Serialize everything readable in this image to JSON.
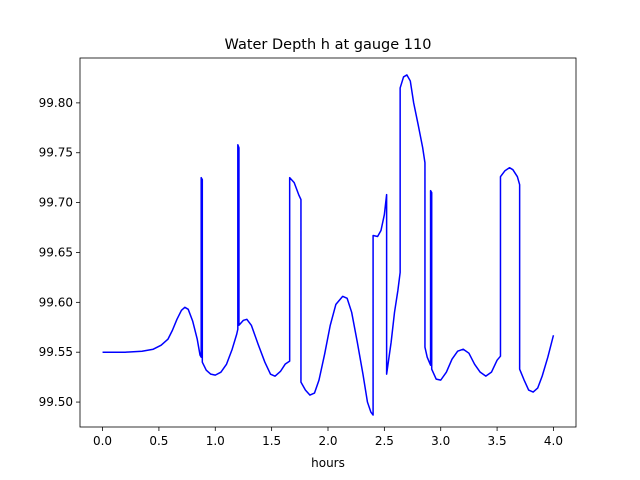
{
  "chart_data": {
    "type": "line",
    "title": "Water Depth h at gauge 110",
    "xlabel": "hours",
    "ylabel": "",
    "xlim": [
      -0.2,
      4.2
    ],
    "ylim": [
      99.475,
      99.845
    ],
    "xticks": [
      "0.0",
      "0.5",
      "1.0",
      "1.5",
      "2.0",
      "2.5",
      "3.0",
      "3.5",
      "4.0"
    ],
    "yticks": [
      "99.50",
      "99.55",
      "99.60",
      "99.65",
      "99.70",
      "99.75",
      "99.80"
    ],
    "grid": false,
    "series": [
      {
        "color": "#0000ff",
        "points": [
          [
            0.0,
            99.55
          ],
          [
            0.2,
            99.55
          ],
          [
            0.35,
            99.551
          ],
          [
            0.45,
            99.553
          ],
          [
            0.52,
            99.557
          ],
          [
            0.58,
            99.563
          ],
          [
            0.62,
            99.572
          ],
          [
            0.66,
            99.583
          ],
          [
            0.7,
            99.592
          ],
          [
            0.73,
            99.595
          ],
          [
            0.76,
            99.593
          ],
          [
            0.8,
            99.581
          ],
          [
            0.84,
            99.563
          ],
          [
            0.865,
            99.547
          ],
          [
            0.875,
            99.545
          ],
          [
            0.875,
            99.725
          ],
          [
            0.885,
            99.723
          ],
          [
            0.885,
            99.54
          ],
          [
            0.92,
            99.532
          ],
          [
            0.96,
            99.528
          ],
          [
            1.0,
            99.527
          ],
          [
            1.05,
            99.53
          ],
          [
            1.1,
            99.538
          ],
          [
            1.15,
            99.553
          ],
          [
            1.19,
            99.568
          ],
          [
            1.2,
            99.573
          ],
          [
            1.2,
            99.758
          ],
          [
            1.21,
            99.755
          ],
          [
            1.21,
            99.577
          ],
          [
            1.25,
            99.582
          ],
          [
            1.28,
            99.583
          ],
          [
            1.32,
            99.577
          ],
          [
            1.38,
            99.558
          ],
          [
            1.44,
            99.54
          ],
          [
            1.49,
            99.528
          ],
          [
            1.53,
            99.526
          ],
          [
            1.58,
            99.531
          ],
          [
            1.62,
            99.538
          ],
          [
            1.66,
            99.541
          ],
          [
            1.66,
            99.725
          ],
          [
            1.7,
            99.72
          ],
          [
            1.74,
            99.708
          ],
          [
            1.76,
            99.703
          ],
          [
            1.76,
            99.52
          ],
          [
            1.8,
            99.512
          ],
          [
            1.84,
            99.507
          ],
          [
            1.88,
            99.509
          ],
          [
            1.92,
            99.522
          ],
          [
            1.97,
            99.548
          ],
          [
            2.02,
            99.577
          ],
          [
            2.07,
            99.598
          ],
          [
            2.13,
            99.606
          ],
          [
            2.17,
            99.604
          ],
          [
            2.21,
            99.59
          ],
          [
            2.26,
            99.56
          ],
          [
            2.31,
            99.528
          ],
          [
            2.35,
            99.5
          ],
          [
            2.38,
            99.49
          ],
          [
            2.4,
            99.487
          ],
          [
            2.4,
            99.667
          ],
          [
            2.44,
            99.666
          ],
          [
            2.47,
            99.672
          ],
          [
            2.5,
            99.688
          ],
          [
            2.52,
            99.708
          ],
          [
            2.52,
            99.528
          ],
          [
            2.56,
            99.56
          ],
          [
            2.59,
            99.59
          ],
          [
            2.62,
            99.612
          ],
          [
            2.64,
            99.63
          ],
          [
            2.64,
            99.815
          ],
          [
            2.67,
            99.826
          ],
          [
            2.7,
            99.828
          ],
          [
            2.73,
            99.822
          ],
          [
            2.76,
            99.8
          ],
          [
            2.8,
            99.778
          ],
          [
            2.84,
            99.755
          ],
          [
            2.86,
            99.74
          ],
          [
            2.86,
            99.555
          ],
          [
            2.88,
            99.545
          ],
          [
            2.91,
            99.537
          ],
          [
            2.91,
            99.712
          ],
          [
            2.92,
            99.71
          ],
          [
            2.92,
            99.533
          ],
          [
            2.96,
            99.523
          ],
          [
            3.0,
            99.522
          ],
          [
            3.05,
            99.53
          ],
          [
            3.1,
            99.543
          ],
          [
            3.15,
            99.551
          ],
          [
            3.2,
            99.553
          ],
          [
            3.25,
            99.549
          ],
          [
            3.3,
            99.538
          ],
          [
            3.35,
            99.53
          ],
          [
            3.4,
            99.526
          ],
          [
            3.45,
            99.53
          ],
          [
            3.5,
            99.542
          ],
          [
            3.53,
            99.546
          ],
          [
            3.53,
            99.726
          ],
          [
            3.57,
            99.732
          ],
          [
            3.61,
            99.735
          ],
          [
            3.64,
            99.733
          ],
          [
            3.68,
            99.726
          ],
          [
            3.7,
            99.718
          ],
          [
            3.7,
            99.533
          ],
          [
            3.74,
            99.522
          ],
          [
            3.78,
            99.512
          ],
          [
            3.82,
            99.51
          ],
          [
            3.86,
            99.514
          ],
          [
            3.9,
            99.526
          ],
          [
            3.95,
            99.545
          ],
          [
            4.0,
            99.567
          ]
        ]
      }
    ]
  }
}
